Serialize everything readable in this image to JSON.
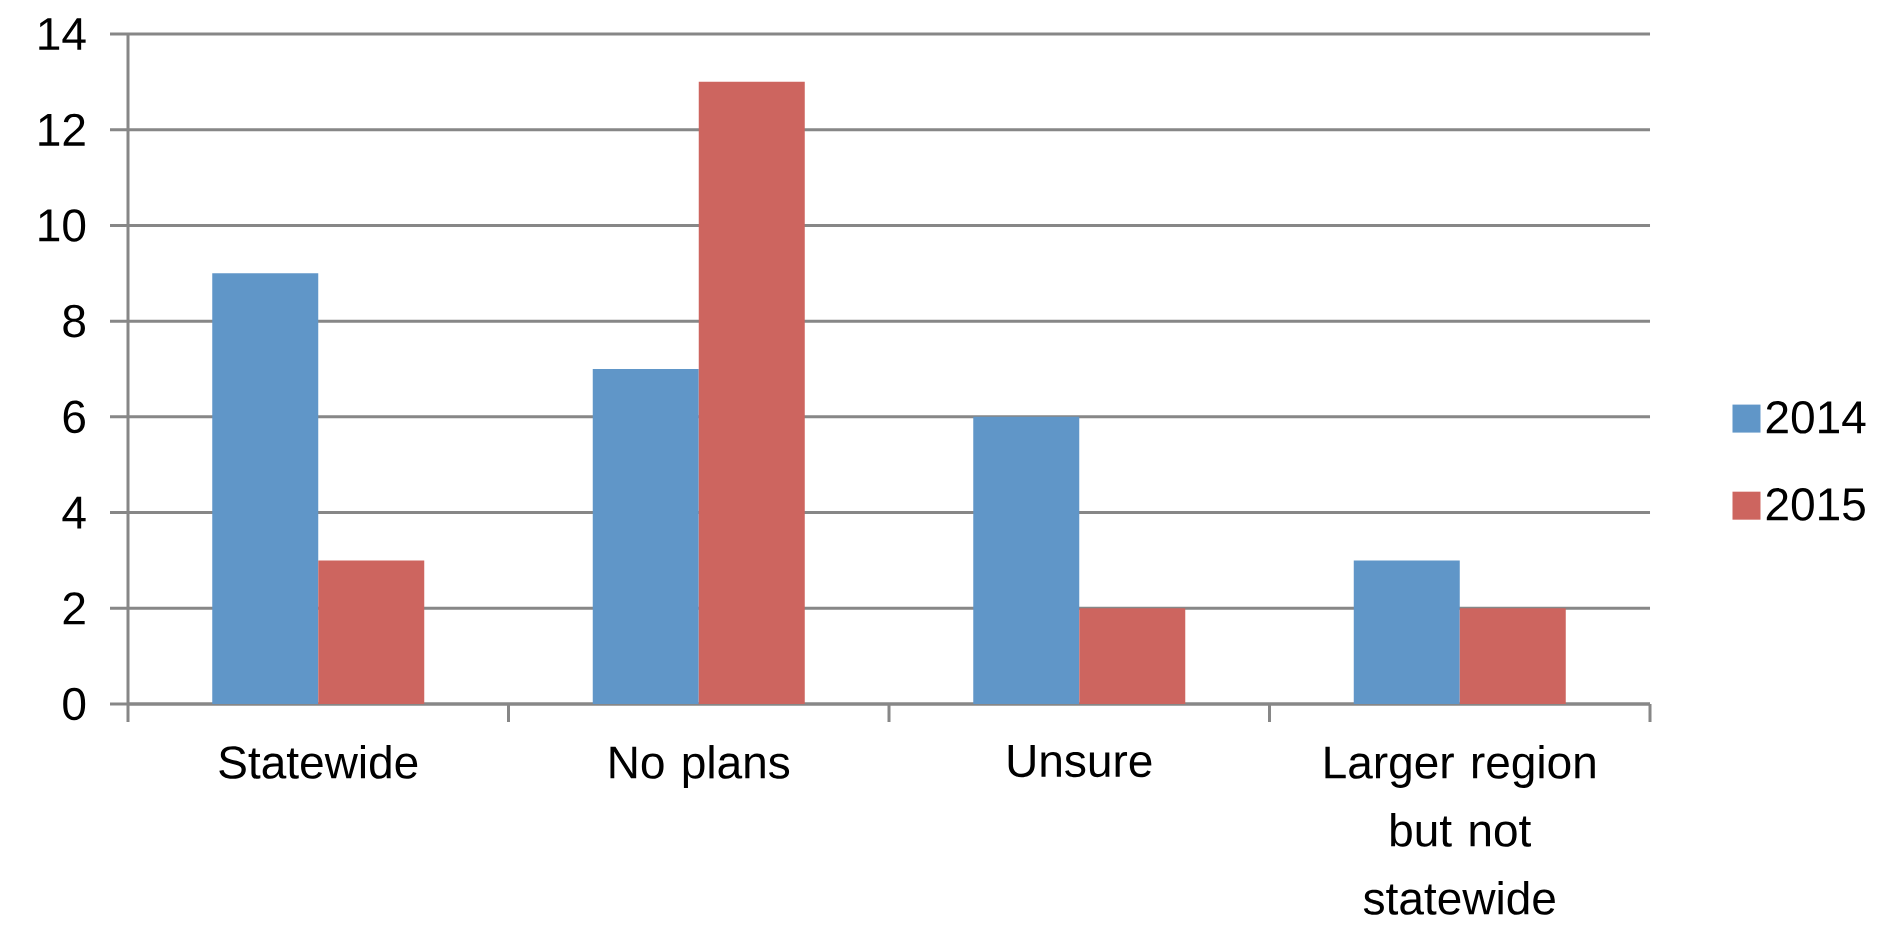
{
  "chart_data": {
    "type": "bar",
    "categories": [
      "Statewide",
      "No plans",
      "Unsure",
      "Larger region but not statewide"
    ],
    "series": [
      {
        "name": "2014",
        "color": "#6096c8",
        "values": [
          9,
          7,
          6,
          3
        ]
      },
      {
        "name": "2015",
        "color": "#cd655f",
        "values": [
          3,
          13,
          2,
          2
        ]
      }
    ],
    "ylim": [
      0,
      14
    ],
    "yticks": [
      0,
      2,
      4,
      6,
      8,
      10,
      12,
      14
    ],
    "grid": "y",
    "legend": "right"
  }
}
